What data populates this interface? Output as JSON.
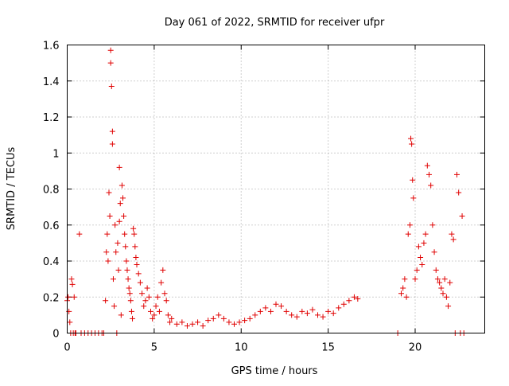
{
  "chart_data": {
    "type": "scatter",
    "title": "Day 061 of 2022, SRMTID for receiver ufpr",
    "xlabel": "GPS time / hours",
    "ylabel": "SRMTID / TECUs",
    "xlim": [
      0,
      24
    ],
    "ylim": [
      0,
      1.6
    ],
    "grid": true,
    "marker": "+",
    "color": "#e00000",
    "x_ticks": [
      0,
      5,
      10,
      15,
      20
    ],
    "y_ticks": [
      0,
      0.2,
      0.4,
      0.6,
      0.8,
      1,
      1.2,
      1.4,
      1.6
    ],
    "x_tick_labels": [
      "0",
      "5",
      "10",
      "15",
      "20"
    ],
    "y_tick_labels": [
      "0",
      "0.2",
      "0.4",
      "0.6",
      "0.8",
      "1",
      "1.2",
      "1.4",
      "1.6"
    ],
    "series": [
      {
        "name": "SRMTID",
        "x": [
          0.0,
          0.05,
          0.1,
          0.15,
          0.2,
          0.25,
          0.3,
          0.35,
          0.4,
          0.45,
          0.5,
          0.7,
          0.8,
          1.0,
          1.2,
          1.4,
          1.6,
          1.8,
          2.0,
          2.1,
          2.2,
          2.25,
          2.3,
          2.35,
          2.4,
          2.45,
          2.5,
          2.5,
          2.55,
          2.6,
          2.6,
          2.65,
          2.7,
          2.75,
          2.8,
          2.85,
          2.9,
          2.95,
          3.0,
          3.0,
          3.05,
          3.1,
          3.15,
          3.2,
          3.25,
          3.3,
          3.35,
          3.4,
          3.45,
          3.5,
          3.55,
          3.6,
          3.65,
          3.7,
          3.75,
          3.8,
          3.85,
          3.9,
          3.95,
          4.0,
          4.1,
          4.2,
          4.3,
          4.4,
          4.5,
          4.6,
          4.7,
          4.8,
          4.9,
          5.0,
          5.1,
          5.2,
          5.3,
          5.4,
          5.5,
          5.6,
          5.7,
          5.8,
          5.9,
          6.0,
          6.3,
          6.6,
          6.9,
          7.2,
          7.5,
          7.8,
          8.1,
          8.4,
          8.7,
          9.0,
          9.3,
          9.6,
          9.9,
          10.2,
          10.5,
          10.8,
          11.1,
          11.4,
          11.7,
          12.0,
          12.3,
          12.6,
          12.9,
          13.2,
          13.5,
          13.8,
          14.1,
          14.4,
          14.7,
          15.0,
          15.3,
          15.6,
          15.9,
          16.2,
          16.5,
          16.7,
          19.0,
          19.2,
          19.3,
          19.4,
          19.5,
          19.6,
          19.7,
          19.75,
          19.8,
          19.85,
          19.9,
          20.0,
          20.1,
          20.2,
          20.3,
          20.4,
          20.5,
          20.6,
          20.7,
          20.8,
          20.9,
          21.0,
          21.1,
          21.2,
          21.3,
          21.4,
          21.5,
          21.6,
          21.7,
          21.8,
          21.9,
          22.0,
          22.1,
          22.2,
          22.3,
          22.4,
          22.5,
          22.6,
          22.7,
          22.8
        ],
        "y": [
          0.18,
          0.2,
          0.12,
          0.06,
          0.0,
          0.3,
          0.27,
          0.0,
          0.2,
          0.0,
          0.0,
          0.55,
          0.0,
          0.0,
          0.0,
          0.0,
          0.0,
          0.0,
          0.0,
          0.0,
          0.18,
          0.45,
          0.55,
          0.4,
          0.78,
          0.65,
          1.57,
          1.5,
          1.37,
          1.12,
          1.05,
          0.3,
          0.15,
          0.6,
          0.45,
          0.0,
          0.5,
          0.35,
          0.92,
          0.62,
          0.72,
          0.1,
          0.82,
          0.75,
          0.65,
          0.55,
          0.48,
          0.4,
          0.35,
          0.3,
          0.25,
          0.22,
          0.18,
          0.12,
          0.08,
          0.58,
          0.55,
          0.48,
          0.42,
          0.38,
          0.33,
          0.28,
          0.22,
          0.15,
          0.18,
          0.25,
          0.2,
          0.12,
          0.08,
          0.1,
          0.15,
          0.2,
          0.12,
          0.28,
          0.35,
          0.22,
          0.18,
          0.1,
          0.06,
          0.08,
          0.05,
          0.06,
          0.04,
          0.05,
          0.06,
          0.04,
          0.07,
          0.08,
          0.1,
          0.08,
          0.06,
          0.05,
          0.06,
          0.07,
          0.08,
          0.1,
          0.12,
          0.14,
          0.12,
          0.16,
          0.15,
          0.12,
          0.1,
          0.09,
          0.12,
          0.11,
          0.13,
          0.1,
          0.09,
          0.12,
          0.11,
          0.14,
          0.16,
          0.18,
          0.2,
          0.19,
          0.0,
          0.22,
          0.25,
          0.3,
          0.2,
          0.55,
          0.6,
          1.08,
          1.05,
          0.85,
          0.75,
          0.3,
          0.35,
          0.48,
          0.42,
          0.38,
          0.5,
          0.55,
          0.93,
          0.88,
          0.82,
          0.6,
          0.45,
          0.35,
          0.3,
          0.28,
          0.25,
          0.22,
          0.3,
          0.2,
          0.15,
          0.28,
          0.55,
          0.52,
          0.0,
          0.88,
          0.78,
          0.0,
          0.65,
          0.0
        ]
      }
    ]
  }
}
